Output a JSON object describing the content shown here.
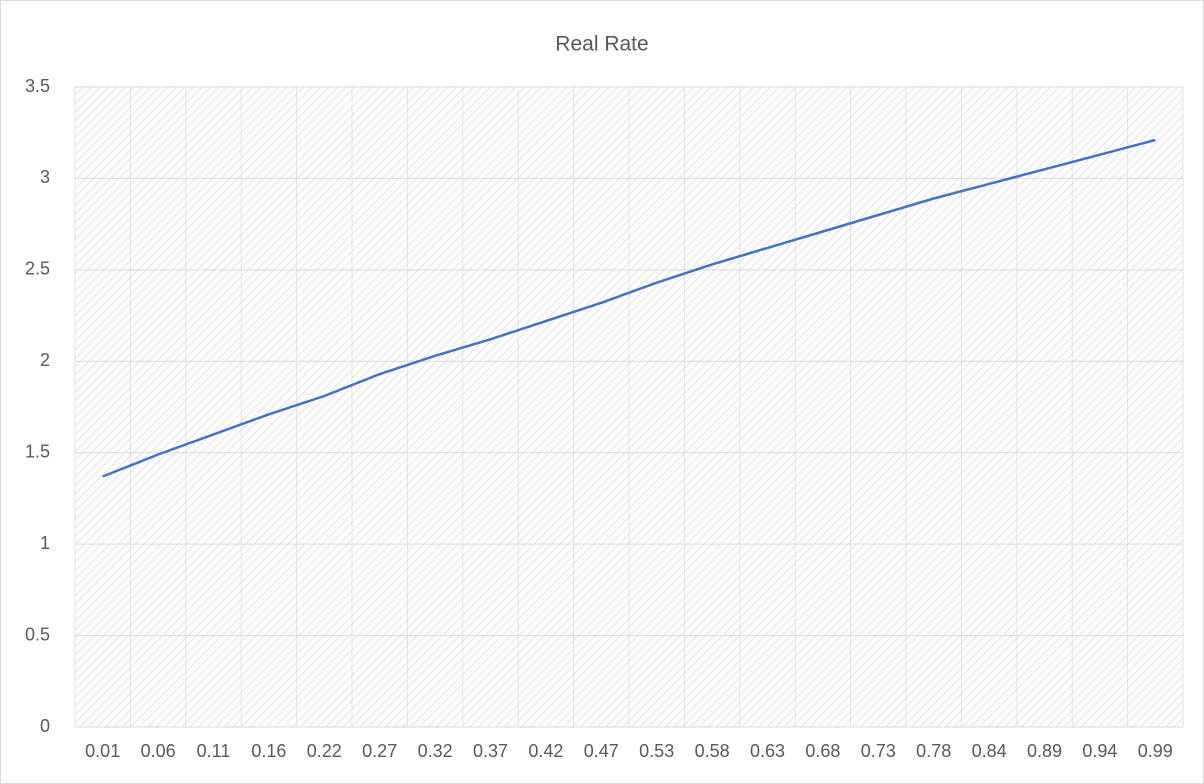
{
  "chart_data": {
    "type": "line",
    "title": "Real Rate",
    "categories": [
      "0.01",
      "0.06",
      "0.11",
      "0.16",
      "0.22",
      "0.27",
      "0.32",
      "0.37",
      "0.42",
      "0.47",
      "0.53",
      "0.58",
      "0.63",
      "0.68",
      "0.73",
      "0.78",
      "0.84",
      "0.89",
      "0.94",
      "0.99"
    ],
    "series": [
      {
        "name": "Real Rate",
        "color": "#4472c4",
        "values": [
          1.37,
          1.49,
          1.6,
          1.71,
          1.81,
          1.93,
          2.03,
          2.12,
          2.22,
          2.32,
          2.43,
          2.53,
          2.62,
          2.71,
          2.8,
          2.89,
          2.97,
          3.05,
          3.13,
          3.21
        ]
      }
    ],
    "ylim": [
      0,
      3.5
    ],
    "yticks": [
      0,
      0.5,
      1,
      1.5,
      2,
      2.5,
      3,
      3.5
    ],
    "grid": true
  }
}
